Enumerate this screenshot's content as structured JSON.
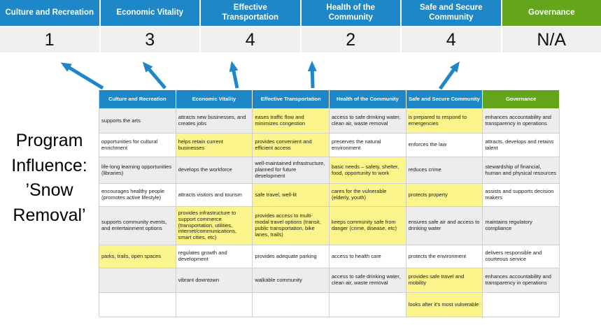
{
  "colors": {
    "header_blue": "#1E87C7",
    "header_green": "#63A61C",
    "score_bg": "#EFEFEF",
    "highlight_yellow": "#FBF58C",
    "stripe_gray": "#EDEDED",
    "arrow_blue": "#1E87C7"
  },
  "scoreboard": {
    "items": [
      {
        "label": "Culture and Recreation",
        "score": "1"
      },
      {
        "label": "Economic Vitality",
        "score": "3"
      },
      {
        "label": "Effective Transportation",
        "score": "4"
      },
      {
        "label": "Health of the Community",
        "score": "2"
      },
      {
        "label": "Safe and Secure Community",
        "score": "4"
      },
      {
        "label": "Governance",
        "score": "N/A"
      }
    ]
  },
  "program_label": {
    "line1": "Program",
    "line2": "Influence:",
    "line3": "’Snow",
    "line4": "Removal’"
  },
  "matrix": {
    "headers": [
      "Culture and Recreation",
      "Economic Vitality",
      "Effective Transportation",
      "Health of the Community",
      "Safe and Secure Community",
      "Governance"
    ],
    "columns": [
      {
        "name": "Culture and Recreation",
        "cells": [
          {
            "t": "supports the arts",
            "h": false
          },
          {
            "t": "opportunities for cultural enrichment",
            "h": false
          },
          {
            "t": "life-long learning opportunities (libraries)",
            "h": false
          },
          {
            "t": "encourages healthy people (promotes active lifestyle)",
            "h": false
          },
          {
            "t": "supports community events, and entertainment options",
            "h": false
          },
          {
            "t": "parks, trails, open spaces",
            "h": true
          },
          {
            "t": "",
            "h": false
          },
          {
            "t": "",
            "h": false
          }
        ]
      },
      {
        "name": "Economic Vitality",
        "cells": [
          {
            "t": "attracts new businesses, and creates jobs",
            "h": false
          },
          {
            "t": "helps retain current businesses",
            "h": true
          },
          {
            "t": "develops the workforce",
            "h": false
          },
          {
            "t": "attracts visitors and tourism",
            "h": false
          },
          {
            "t": "provides infrastructure to support commerce (transportation, utilities, internet/communications, smart cities, etc)",
            "h": true
          },
          {
            "t": "regulates growth and development",
            "h": false
          },
          {
            "t": "vibrant downtown",
            "h": false
          },
          {
            "t": "",
            "h": false
          }
        ]
      },
      {
        "name": "Effective Transportation",
        "cells": [
          {
            "t": "eases traffic flow and minimizes congestion",
            "h": true
          },
          {
            "t": "provides convenient and efficient access",
            "h": true
          },
          {
            "t": "well-maintained infrastructure, planned for future development",
            "h": false
          },
          {
            "t": "safe travel, well-lit",
            "h": true
          },
          {
            "t": "provides access to multi-modal travel options (transit, public transportation, bike lanes, trails)",
            "h": true
          },
          {
            "t": "provides adequate parking",
            "h": false
          },
          {
            "t": "walkable community",
            "h": false
          },
          {
            "t": "",
            "h": false
          }
        ]
      },
      {
        "name": "Health of the Community",
        "cells": [
          {
            "t": "access to safe drinking water, clean air, waste removal",
            "h": false
          },
          {
            "t": "preserves the natural environment",
            "h": false
          },
          {
            "t": "basic needs – safety, shelter, food, opportunity to work",
            "h": true
          },
          {
            "t": "cares for the vulnerable (elderly, youth)",
            "h": true
          },
          {
            "t": "keeps community safe from danger (crime, disease, etc)",
            "h": true
          },
          {
            "t": "access to health care",
            "h": false
          },
          {
            "t": "access to safe drinking water, clean air, waste removal",
            "h": false
          },
          {
            "t": "",
            "h": false
          }
        ]
      },
      {
        "name": "Safe and Secure Community",
        "cells": [
          {
            "t": "is prepared to respond to emergencies",
            "h": true
          },
          {
            "t": "enforces the law",
            "h": false
          },
          {
            "t": "reduces crime",
            "h": false
          },
          {
            "t": "protects property",
            "h": true
          },
          {
            "t": "ensures safe air and access to drinking water",
            "h": false
          },
          {
            "t": "protects the environment",
            "h": false
          },
          {
            "t": "provides safe travel and mobility",
            "h": true
          },
          {
            "t": "looks after it's most vulnerable",
            "h": true
          }
        ]
      },
      {
        "name": "Governance",
        "cells": [
          {
            "t": "enhances accountability and transparency in operations",
            "h": false
          },
          {
            "t": "attracts, develops and retains talent",
            "h": false
          },
          {
            "t": "stewardship of financial, human and physical resources",
            "h": false
          },
          {
            "t": "assists and supports decision makers",
            "h": false
          },
          {
            "t": "maintains regulatory compliance",
            "h": false
          },
          {
            "t": "delivers responsible and courteous service",
            "h": false
          },
          {
            "t": "enhances accountability and transparency in operations",
            "h": false
          },
          {
            "t": "",
            "h": false
          }
        ]
      }
    ]
  }
}
